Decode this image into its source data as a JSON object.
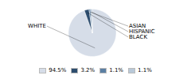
{
  "chart_data": {
    "type": "pie",
    "categories": [
      "WHITE",
      "BLACK",
      "ASIAN",
      "HISPANIC"
    ],
    "values": [
      94.5,
      3.2,
      1.1,
      1.1
    ],
    "value_labels": [
      "94.5%",
      "3.2%",
      "1.1%",
      "1.1%"
    ],
    "colors": [
      "#d6dde8",
      "#2d4d6e",
      "#5b7fa3",
      "#b8c8d8"
    ],
    "legend": "bottom"
  }
}
